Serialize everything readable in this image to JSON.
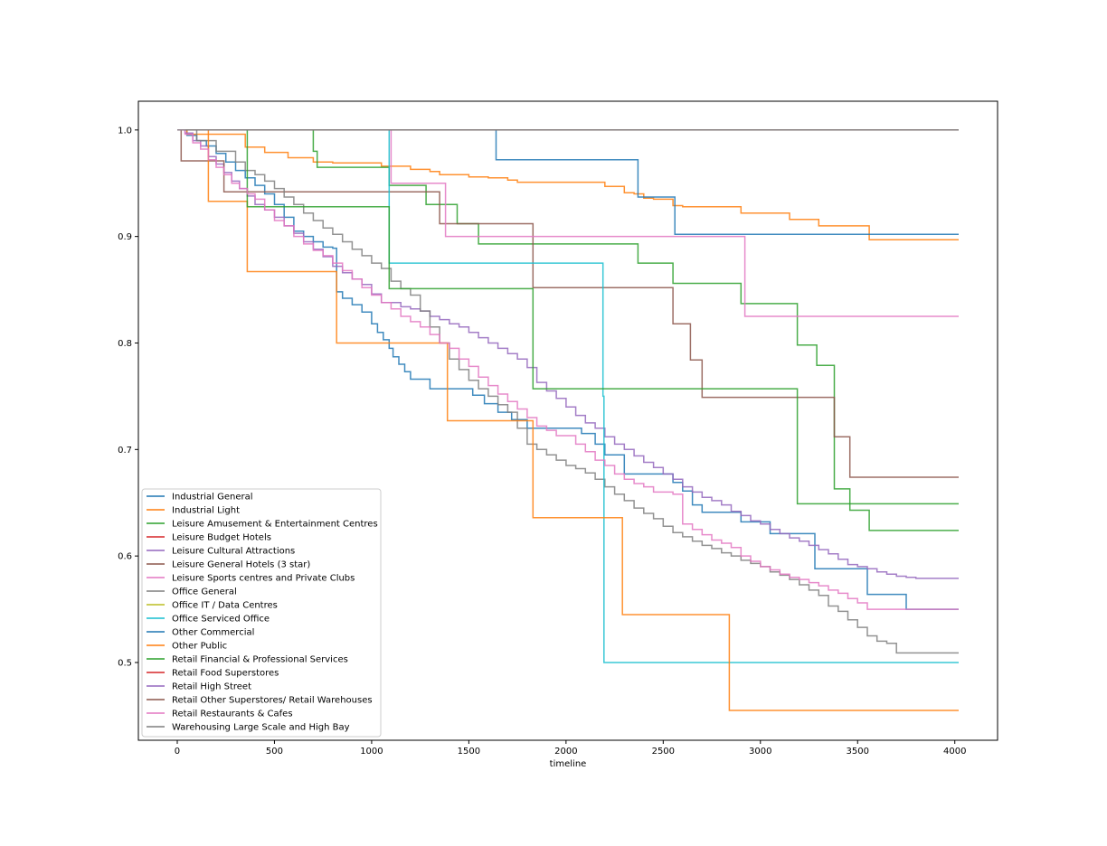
{
  "chart_data": {
    "type": "line",
    "title": "",
    "xlabel": "timeline",
    "ylabel": "",
    "xlim": [
      -200,
      4220
    ],
    "ylim": [
      0.427,
      1.027
    ],
    "x_ticks": [
      0,
      500,
      1000,
      1500,
      2000,
      2500,
      3000,
      3500,
      4000
    ],
    "x_tick_labels": [
      "0",
      "500",
      "1000",
      "1500",
      "2000",
      "2500",
      "3000",
      "3500",
      "4000"
    ],
    "y_ticks": [
      0.5,
      0.6,
      0.7,
      0.8,
      0.9,
      1.0
    ],
    "y_tick_labels": [
      "0.5",
      "0.6",
      "0.7",
      "0.8",
      "0.9",
      "1.0"
    ],
    "grid": false,
    "legend_position": "lower-left",
    "step": true,
    "series": [
      {
        "name": "Industrial General",
        "color": "#1f77b4",
        "x": [
          0,
          50,
          100,
          150,
          200,
          250,
          300,
          350,
          400,
          450,
          500,
          550,
          600,
          650,
          700,
          750,
          800,
          820,
          850,
          900,
          950,
          1000,
          1030,
          1060,
          1090,
          1110,
          1140,
          1170,
          1200,
          1300,
          1450,
          1520,
          1580,
          1650,
          1720,
          1800,
          1850,
          1900,
          2000,
          2080,
          2150,
          2200,
          2300,
          2400,
          2500,
          2550,
          2600,
          2650,
          2700,
          2800,
          2900,
          3000,
          3050,
          3100,
          3200,
          3280,
          3400,
          3450,
          3550,
          3650,
          3750,
          4020
        ],
        "y": [
          1.0,
          0.995,
          0.99,
          0.985,
          0.978,
          0.97,
          0.962,
          0.955,
          0.948,
          0.94,
          0.93,
          0.918,
          0.905,
          0.9,
          0.895,
          0.89,
          0.889,
          0.848,
          0.842,
          0.836,
          0.829,
          0.818,
          0.81,
          0.803,
          0.795,
          0.787,
          0.78,
          0.773,
          0.766,
          0.757,
          0.757,
          0.751,
          0.743,
          0.735,
          0.728,
          0.72,
          0.72,
          0.72,
          0.72,
          0.715,
          0.705,
          0.695,
          0.677,
          0.677,
          0.677,
          0.669,
          0.661,
          0.648,
          0.641,
          0.641,
          0.632,
          0.632,
          0.621,
          0.621,
          0.621,
          0.588,
          0.588,
          0.588,
          0.564,
          0.564,
          0.55,
          0.55
        ]
      },
      {
        "name": "Industrial Light",
        "color": "#ff7f0e",
        "x": [
          0,
          50,
          350,
          450,
          570,
          700,
          800,
          900,
          1000,
          1050,
          1100,
          1200,
          1300,
          1350,
          1400,
          1500,
          1600,
          1700,
          1750,
          1800,
          1900,
          2000,
          2100,
          2200,
          2300,
          2350,
          2400,
          2450,
          2500,
          2550,
          2600,
          2700,
          2800,
          2900,
          3000,
          3100,
          3150,
          3200,
          3300,
          3400,
          3450,
          3500,
          3550,
          3560,
          4020
        ],
        "y": [
          1.0,
          0.996,
          0.984,
          0.979,
          0.974,
          0.97,
          0.969,
          0.969,
          0.969,
          0.966,
          0.966,
          0.963,
          0.961,
          0.958,
          0.958,
          0.956,
          0.955,
          0.953,
          0.951,
          0.951,
          0.951,
          0.951,
          0.951,
          0.947,
          0.941,
          0.94,
          0.936,
          0.935,
          0.935,
          0.929,
          0.928,
          0.928,
          0.928,
          0.922,
          0.922,
          0.922,
          0.916,
          0.916,
          0.91,
          0.91,
          0.91,
          0.91,
          0.91,
          0.897,
          0.897
        ]
      },
      {
        "name": "Leisure Amusement & Entertainment Centres",
        "color": "#2ca02c",
        "x": [
          0,
          700,
          720,
          1090,
          1100,
          1280,
          1310,
          1440,
          1550,
          1650,
          1850,
          2000,
          2100,
          2370,
          2550,
          2800,
          2900,
          3000,
          3100,
          3190,
          3290,
          3380,
          3460,
          3560,
          3600,
          4020
        ],
        "y": [
          1.0,
          0.98,
          0.965,
          0.948,
          0.948,
          0.93,
          0.93,
          0.912,
          0.893,
          0.893,
          0.893,
          0.893,
          0.893,
          0.875,
          0.856,
          0.856,
          0.837,
          0.837,
          0.837,
          0.798,
          0.779,
          0.663,
          0.643,
          0.624,
          0.624,
          0.624
        ]
      },
      {
        "name": "Leisure Budget Hotels",
        "color": "#d62728",
        "x": [
          0,
          4020
        ],
        "y": [
          1.0,
          1.0
        ]
      },
      {
        "name": "Leisure Cultural Attractions",
        "color": "#9467bd",
        "x": [
          0,
          40,
          80,
          120,
          160,
          200,
          240,
          280,
          320,
          360,
          400,
          450,
          500,
          550,
          600,
          650,
          700,
          750,
          800,
          850,
          900,
          950,
          1000,
          1050,
          1100,
          1150,
          1200,
          1250,
          1300,
          1350,
          1400,
          1450,
          1500,
          1550,
          1600,
          1650,
          1700,
          1750,
          1800,
          1850,
          1900,
          1950,
          2000,
          2050,
          2100,
          2150,
          2200,
          2250,
          2300,
          2350,
          2400,
          2450,
          2500,
          2550,
          2600,
          2650,
          2700,
          2750,
          2800,
          2850,
          2900,
          2950,
          3000,
          3050,
          3100,
          3150,
          3200,
          3250,
          3300,
          3350,
          3400,
          3450,
          3500,
          3550,
          3600,
          3650,
          3700,
          3750,
          3800,
          4020
        ],
        "y": [
          1.0,
          0.997,
          0.99,
          0.985,
          0.975,
          0.968,
          0.96,
          0.952,
          0.945,
          0.938,
          0.93,
          0.925,
          0.918,
          0.91,
          0.903,
          0.895,
          0.888,
          0.881,
          0.872,
          0.866,
          0.86,
          0.855,
          0.846,
          0.838,
          0.838,
          0.834,
          0.832,
          0.83,
          0.825,
          0.822,
          0.818,
          0.815,
          0.81,
          0.805,
          0.8,
          0.795,
          0.79,
          0.785,
          0.777,
          0.763,
          0.755,
          0.748,
          0.74,
          0.732,
          0.725,
          0.72,
          0.712,
          0.705,
          0.7,
          0.694,
          0.688,
          0.683,
          0.677,
          0.672,
          0.665,
          0.66,
          0.655,
          0.652,
          0.648,
          0.642,
          0.638,
          0.633,
          0.63,
          0.625,
          0.621,
          0.617,
          0.614,
          0.61,
          0.606,
          0.602,
          0.597,
          0.592,
          0.59,
          0.588,
          0.585,
          0.583,
          0.581,
          0.58,
          0.579,
          0.579
        ]
      },
      {
        "name": "Leisure General Hotels (3 star)",
        "color": "#8c564b",
        "x": [
          0,
          20,
          240,
          500,
          1000,
          1330,
          1350,
          1830,
          2550,
          2640,
          2700,
          2800,
          3300,
          3380,
          3460,
          4020
        ],
        "y": [
          1.0,
          0.971,
          0.942,
          0.942,
          0.942,
          0.942,
          0.912,
          0.852,
          0.818,
          0.784,
          0.749,
          0.749,
          0.749,
          0.712,
          0.674,
          0.674
        ]
      },
      {
        "name": "Leisure Sports centres and Private Clubs",
        "color": "#e377c2",
        "x": [
          0,
          1100,
          1380,
          2000,
          2920,
          4020
        ],
        "y": [
          1.0,
          0.95,
          0.9,
          0.9,
          0.825,
          0.825
        ]
      },
      {
        "name": "Office General",
        "color": "#7f7f7f",
        "x": [
          0,
          100,
          200,
          300,
          350,
          400,
          450,
          500,
          550,
          600,
          650,
          700,
          750,
          800,
          850,
          900,
          950,
          1000,
          1050,
          1100,
          1150,
          1200,
          1250,
          1300,
          1350,
          1400,
          1450,
          1500,
          1550,
          1600,
          1650,
          1700,
          1750,
          1800,
          1850,
          1900,
          1950,
          2000,
          2050,
          2100,
          2150,
          2200,
          2250,
          2300,
          2350,
          2400,
          2450,
          2500,
          2550,
          2600,
          2650,
          2700,
          2750,
          2800,
          2850,
          2900,
          2950,
          3000,
          3050,
          3100,
          3150,
          3200,
          3250,
          3300,
          3350,
          3400,
          3450,
          3500,
          3550,
          3600,
          3650,
          3700,
          3750,
          4020
        ],
        "y": [
          1.0,
          0.99,
          0.98,
          0.97,
          0.962,
          0.958,
          0.952,
          0.945,
          0.937,
          0.93,
          0.922,
          0.915,
          0.908,
          0.902,
          0.895,
          0.888,
          0.882,
          0.875,
          0.87,
          0.858,
          0.851,
          0.845,
          0.83,
          0.815,
          0.8,
          0.785,
          0.775,
          0.765,
          0.757,
          0.75,
          0.742,
          0.735,
          0.72,
          0.705,
          0.7,
          0.695,
          0.69,
          0.685,
          0.682,
          0.678,
          0.672,
          0.665,
          0.658,
          0.652,
          0.645,
          0.64,
          0.635,
          0.628,
          0.622,
          0.618,
          0.614,
          0.61,
          0.607,
          0.603,
          0.6,
          0.596,
          0.593,
          0.59,
          0.585,
          0.582,
          0.578,
          0.573,
          0.568,
          0.563,
          0.553,
          0.548,
          0.54,
          0.533,
          0.525,
          0.52,
          0.518,
          0.509,
          0.509,
          0.509
        ]
      },
      {
        "name": "Office IT / Data Centres",
        "color": "#bcbd22",
        "x": [
          0,
          4020
        ],
        "y": [
          1.0,
          1.0
        ]
      },
      {
        "name": "Office Serviced Office",
        "color": "#17becf",
        "x": [
          0,
          1090,
          2190,
          2195,
          4020
        ],
        "y": [
          1.0,
          0.875,
          0.75,
          0.5,
          0.5
        ]
      },
      {
        "name": "Other Commercial",
        "color": "#1f77b4",
        "x": [
          0,
          1640,
          2370,
          2560,
          4020
        ],
        "y": [
          1.0,
          0.972,
          0.937,
          0.902,
          0.902
        ]
      },
      {
        "name": "Other Public",
        "color": "#ff7f0e",
        "x": [
          0,
          160,
          360,
          820,
          1390,
          1830,
          2290,
          2840,
          4020
        ],
        "y": [
          1.0,
          0.933,
          0.867,
          0.8,
          0.727,
          0.636,
          0.545,
          0.455,
          0.455
        ]
      },
      {
        "name": "Retail Financial & Professional Services",
        "color": "#2ca02c",
        "x": [
          0,
          360,
          1090,
          1830,
          3190,
          4020
        ],
        "y": [
          1.0,
          0.928,
          0.851,
          0.757,
          0.649,
          0.649
        ]
      },
      {
        "name": "Retail Food Superstores",
        "color": "#d62728",
        "x": [
          0,
          4020
        ],
        "y": [
          1.0,
          1.0
        ]
      },
      {
        "name": "Retail High Street",
        "color": "#9467bd",
        "x": [
          0,
          4020
        ],
        "y": [
          1.0,
          1.0
        ]
      },
      {
        "name": "Retail Other Superstores/ Retail Warehouses",
        "color": "#8c564b",
        "x": [
          0,
          4020
        ],
        "y": [
          1.0,
          1.0
        ]
      },
      {
        "name": "Retail Restaurants & Cafes",
        "color": "#e377c2",
        "x": [
          0,
          40,
          80,
          120,
          160,
          200,
          240,
          280,
          320,
          360,
          400,
          450,
          500,
          550,
          600,
          650,
          700,
          750,
          800,
          850,
          900,
          950,
          1000,
          1050,
          1100,
          1150,
          1200,
          1250,
          1300,
          1350,
          1400,
          1450,
          1500,
          1550,
          1600,
          1650,
          1700,
          1750,
          1800,
          1850,
          1900,
          1950,
          2000,
          2050,
          2100,
          2150,
          2200,
          2250,
          2300,
          2350,
          2400,
          2450,
          2500,
          2550,
          2600,
          2650,
          2700,
          2750,
          2800,
          2850,
          2900,
          2950,
          3000,
          3050,
          3100,
          3150,
          3200,
          3250,
          3300,
          3350,
          3400,
          3450,
          3500,
          3550,
          3600,
          3650,
          3700,
          3750,
          4020
        ],
        "y": [
          1.0,
          0.996,
          0.988,
          0.982,
          0.972,
          0.965,
          0.958,
          0.95,
          0.945,
          0.94,
          0.935,
          0.925,
          0.915,
          0.91,
          0.9,
          0.893,
          0.887,
          0.882,
          0.875,
          0.868,
          0.86,
          0.852,
          0.845,
          0.838,
          0.832,
          0.825,
          0.82,
          0.815,
          0.808,
          0.8,
          0.795,
          0.785,
          0.778,
          0.768,
          0.76,
          0.752,
          0.745,
          0.738,
          0.73,
          0.722,
          0.718,
          0.713,
          0.713,
          0.705,
          0.698,
          0.69,
          0.685,
          0.677,
          0.672,
          0.668,
          0.665,
          0.66,
          0.66,
          0.658,
          0.63,
          0.625,
          0.62,
          0.615,
          0.612,
          0.608,
          0.6,
          0.595,
          0.59,
          0.587,
          0.583,
          0.58,
          0.578,
          0.575,
          0.572,
          0.568,
          0.565,
          0.56,
          0.556,
          0.55,
          0.55,
          0.55,
          0.55,
          0.55,
          0.55
        ]
      },
      {
        "name": "Warehousing  Large Scale and High Bay",
        "color": "#7f7f7f",
        "x": [
          0,
          4020
        ],
        "y": [
          1.0,
          1.0
        ]
      }
    ]
  }
}
